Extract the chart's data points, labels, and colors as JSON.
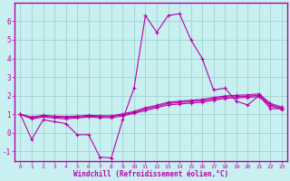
{
  "xlabel": "Windchill (Refroidissement éolien,°C)",
  "bg_color": "#c8f0f0",
  "line_color": "#bb00aa",
  "grid_color": "#99cccc",
  "spine_color": "#bb00aa",
  "xlim": [
    -0.5,
    23.5
  ],
  "ylim": [
    -1.5,
    7.0
  ],
  "yticks": [
    -1,
    0,
    1,
    2,
    3,
    4,
    5,
    6
  ],
  "xticks": [
    0,
    1,
    2,
    3,
    4,
    5,
    6,
    7,
    8,
    9,
    10,
    11,
    12,
    13,
    14,
    15,
    16,
    17,
    18,
    19,
    20,
    21,
    22,
    23
  ],
  "series1": {
    "x": [
      0,
      1,
      2,
      3,
      4,
      5,
      6,
      7,
      8,
      9,
      10,
      11,
      12,
      13,
      14,
      15,
      16,
      17,
      18,
      19,
      20,
      21,
      22,
      23
    ],
    "y": [
      1.0,
      -0.35,
      0.7,
      0.6,
      0.5,
      -0.1,
      -0.1,
      -1.3,
      -1.35,
      0.7,
      2.4,
      6.3,
      5.4,
      6.3,
      6.4,
      5.0,
      4.0,
      2.3,
      2.4,
      1.7,
      1.5,
      2.0,
      1.3,
      1.3
    ]
  },
  "series2": {
    "x": [
      0,
      1,
      2,
      3,
      4,
      5,
      6,
      7,
      8,
      9,
      10,
      11,
      12,
      13,
      14,
      15,
      16,
      17,
      18,
      19,
      20,
      21,
      22,
      23
    ],
    "y": [
      1.0,
      0.75,
      0.85,
      0.8,
      0.75,
      0.8,
      0.85,
      0.82,
      0.82,
      0.9,
      1.05,
      1.2,
      1.35,
      1.5,
      1.55,
      1.6,
      1.65,
      1.75,
      1.85,
      1.88,
      1.9,
      1.95,
      1.45,
      1.25
    ]
  },
  "series3": {
    "x": [
      0,
      1,
      2,
      3,
      4,
      5,
      6,
      7,
      8,
      9,
      10,
      11,
      12,
      13,
      14,
      15,
      16,
      17,
      18,
      19,
      20,
      21,
      22,
      23
    ],
    "y": [
      1.0,
      0.8,
      0.9,
      0.85,
      0.82,
      0.85,
      0.9,
      0.87,
      0.87,
      0.97,
      1.1,
      1.28,
      1.42,
      1.58,
      1.63,
      1.68,
      1.73,
      1.83,
      1.92,
      1.95,
      1.97,
      2.02,
      1.52,
      1.32
    ]
  },
  "series4": {
    "x": [
      0,
      1,
      2,
      3,
      4,
      5,
      6,
      7,
      8,
      9,
      10,
      11,
      12,
      13,
      14,
      15,
      16,
      17,
      18,
      19,
      20,
      21,
      22,
      23
    ],
    "y": [
      1.0,
      0.85,
      0.95,
      0.9,
      0.88,
      0.9,
      0.95,
      0.92,
      0.92,
      1.02,
      1.15,
      1.35,
      1.48,
      1.65,
      1.7,
      1.75,
      1.8,
      1.9,
      1.98,
      2.02,
      2.04,
      2.1,
      1.58,
      1.38
    ]
  }
}
